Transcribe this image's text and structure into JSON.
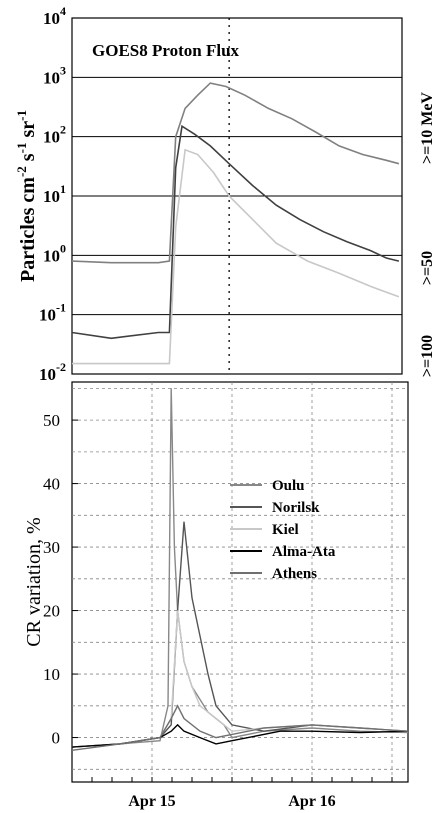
{
  "chart_data": [
    {
      "type": "line",
      "title": "GOES8 Proton Flux",
      "ylabel_parts": [
        "Particles cm",
        "-2",
        "s",
        "-1",
        "sr",
        "-1"
      ],
      "yscale": "log",
      "ylim": [
        0.01,
        10000
      ],
      "yticks": [
        {
          "base": "10",
          "exp": "-2"
        },
        {
          "base": "10",
          "exp": "-1"
        },
        {
          "base": "10",
          "exp": "0"
        },
        {
          "base": "10",
          "exp": "1"
        },
        {
          "base": "10",
          "exp": "2"
        },
        {
          "base": "10",
          "exp": "3"
        },
        {
          "base": "10",
          "exp": "4"
        }
      ],
      "x_range_days": [
        14.0,
        16.1
      ],
      "right_labels": [
        ">=10 MeV",
        ">=50",
        ">=100"
      ],
      "series": [
        {
          "color": "#808080",
          "x": [
            14.0,
            14.25,
            14.55,
            14.62,
            14.66,
            14.72,
            14.8,
            14.88,
            14.98,
            15.1,
            15.25,
            15.4,
            15.55,
            15.7,
            15.85,
            16.0,
            16.08
          ],
          "y": [
            0.8,
            0.75,
            0.75,
            0.8,
            100,
            300,
            500,
            800,
            700,
            500,
            300,
            200,
            120,
            70,
            50,
            40,
            35
          ]
        },
        {
          "color": "#404040",
          "x": [
            14.0,
            14.25,
            14.55,
            14.62,
            14.66,
            14.7,
            14.78,
            14.88,
            15.0,
            15.15,
            15.3,
            15.45,
            15.6,
            15.75,
            15.9,
            16.0,
            16.08
          ],
          "y": [
            0.05,
            0.04,
            0.05,
            0.05,
            30,
            150,
            110,
            70,
            35,
            15,
            7,
            4,
            2.5,
            1.7,
            1.2,
            0.9,
            0.8
          ]
        },
        {
          "color": "#c8c8c8",
          "x": [
            14.0,
            14.25,
            14.55,
            14.62,
            14.66,
            14.72,
            14.8,
            14.9,
            15.0,
            15.15,
            15.3,
            15.5,
            15.7,
            15.9,
            16.08
          ],
          "y": [
            0.015,
            0.015,
            0.015,
            0.015,
            3,
            60,
            50,
            25,
            10,
            4,
            1.6,
            0.8,
            0.5,
            0.3,
            0.2
          ]
        }
      ]
    },
    {
      "type": "line",
      "ylabel": "CR variation, %",
      "ylim": [
        -7,
        56
      ],
      "yticks": [
        "0",
        "10",
        "20",
        "30",
        "40",
        "50"
      ],
      "xticks": [
        "Apr 15",
        "Apr 16"
      ],
      "x_range_days": [
        14.0,
        16.1
      ],
      "legend_position": "center-right",
      "series": [
        {
          "name": "Oulu",
          "color": "#888888",
          "x": [
            14.0,
            14.3,
            14.55,
            14.6,
            14.62,
            14.64,
            14.66,
            14.7,
            14.75,
            14.85,
            14.95,
            15.0,
            15.2,
            15.5,
            15.8,
            16.1
          ],
          "y": [
            -1.5,
            -1,
            -0.5,
            5,
            55,
            30,
            20,
            12,
            8,
            4,
            2,
            0,
            1,
            1.5,
            1,
            0.8
          ]
        },
        {
          "name": "Norilsk",
          "color": "#555555",
          "x": [
            14.0,
            14.3,
            14.55,
            14.62,
            14.66,
            14.7,
            14.75,
            14.8,
            14.85,
            14.9,
            15.0,
            15.2,
            15.5,
            15.8,
            16.1
          ],
          "y": [
            -1.5,
            -1,
            0,
            2,
            20,
            34,
            22,
            16,
            10,
            5,
            2,
            1,
            2,
            1.5,
            1
          ]
        },
        {
          "name": "Kiel",
          "color": "#c8c8c8",
          "x": [
            14.0,
            14.3,
            14.55,
            14.62,
            14.66,
            14.7,
            14.75,
            14.8,
            14.9,
            15.0,
            15.2,
            15.5,
            15.8,
            16.1
          ],
          "y": [
            -1.5,
            -1,
            0,
            3,
            20,
            12,
            8,
            5,
            3,
            1,
            1.5,
            2,
            1.5,
            1
          ]
        },
        {
          "name": "Alma-Ata",
          "color": "#000000",
          "x": [
            14.0,
            14.3,
            14.55,
            14.62,
            14.66,
            14.7,
            14.8,
            14.9,
            15.0,
            15.1,
            15.3,
            15.5,
            15.8,
            16.1
          ],
          "y": [
            -1.5,
            -1,
            0,
            1,
            2,
            1,
            0,
            -1,
            -0.5,
            0,
            1,
            1,
            0.8,
            1
          ]
        },
        {
          "name": "Athens",
          "color": "#707070",
          "x": [
            14.0,
            14.3,
            14.55,
            14.62,
            14.66,
            14.7,
            14.8,
            14.9,
            15.0,
            15.2,
            15.5,
            15.8,
            16.1
          ],
          "y": [
            -2,
            -1,
            0,
            3,
            5,
            3,
            1,
            0,
            0.5,
            1.5,
            2,
            1.5,
            1
          ]
        }
      ]
    }
  ]
}
